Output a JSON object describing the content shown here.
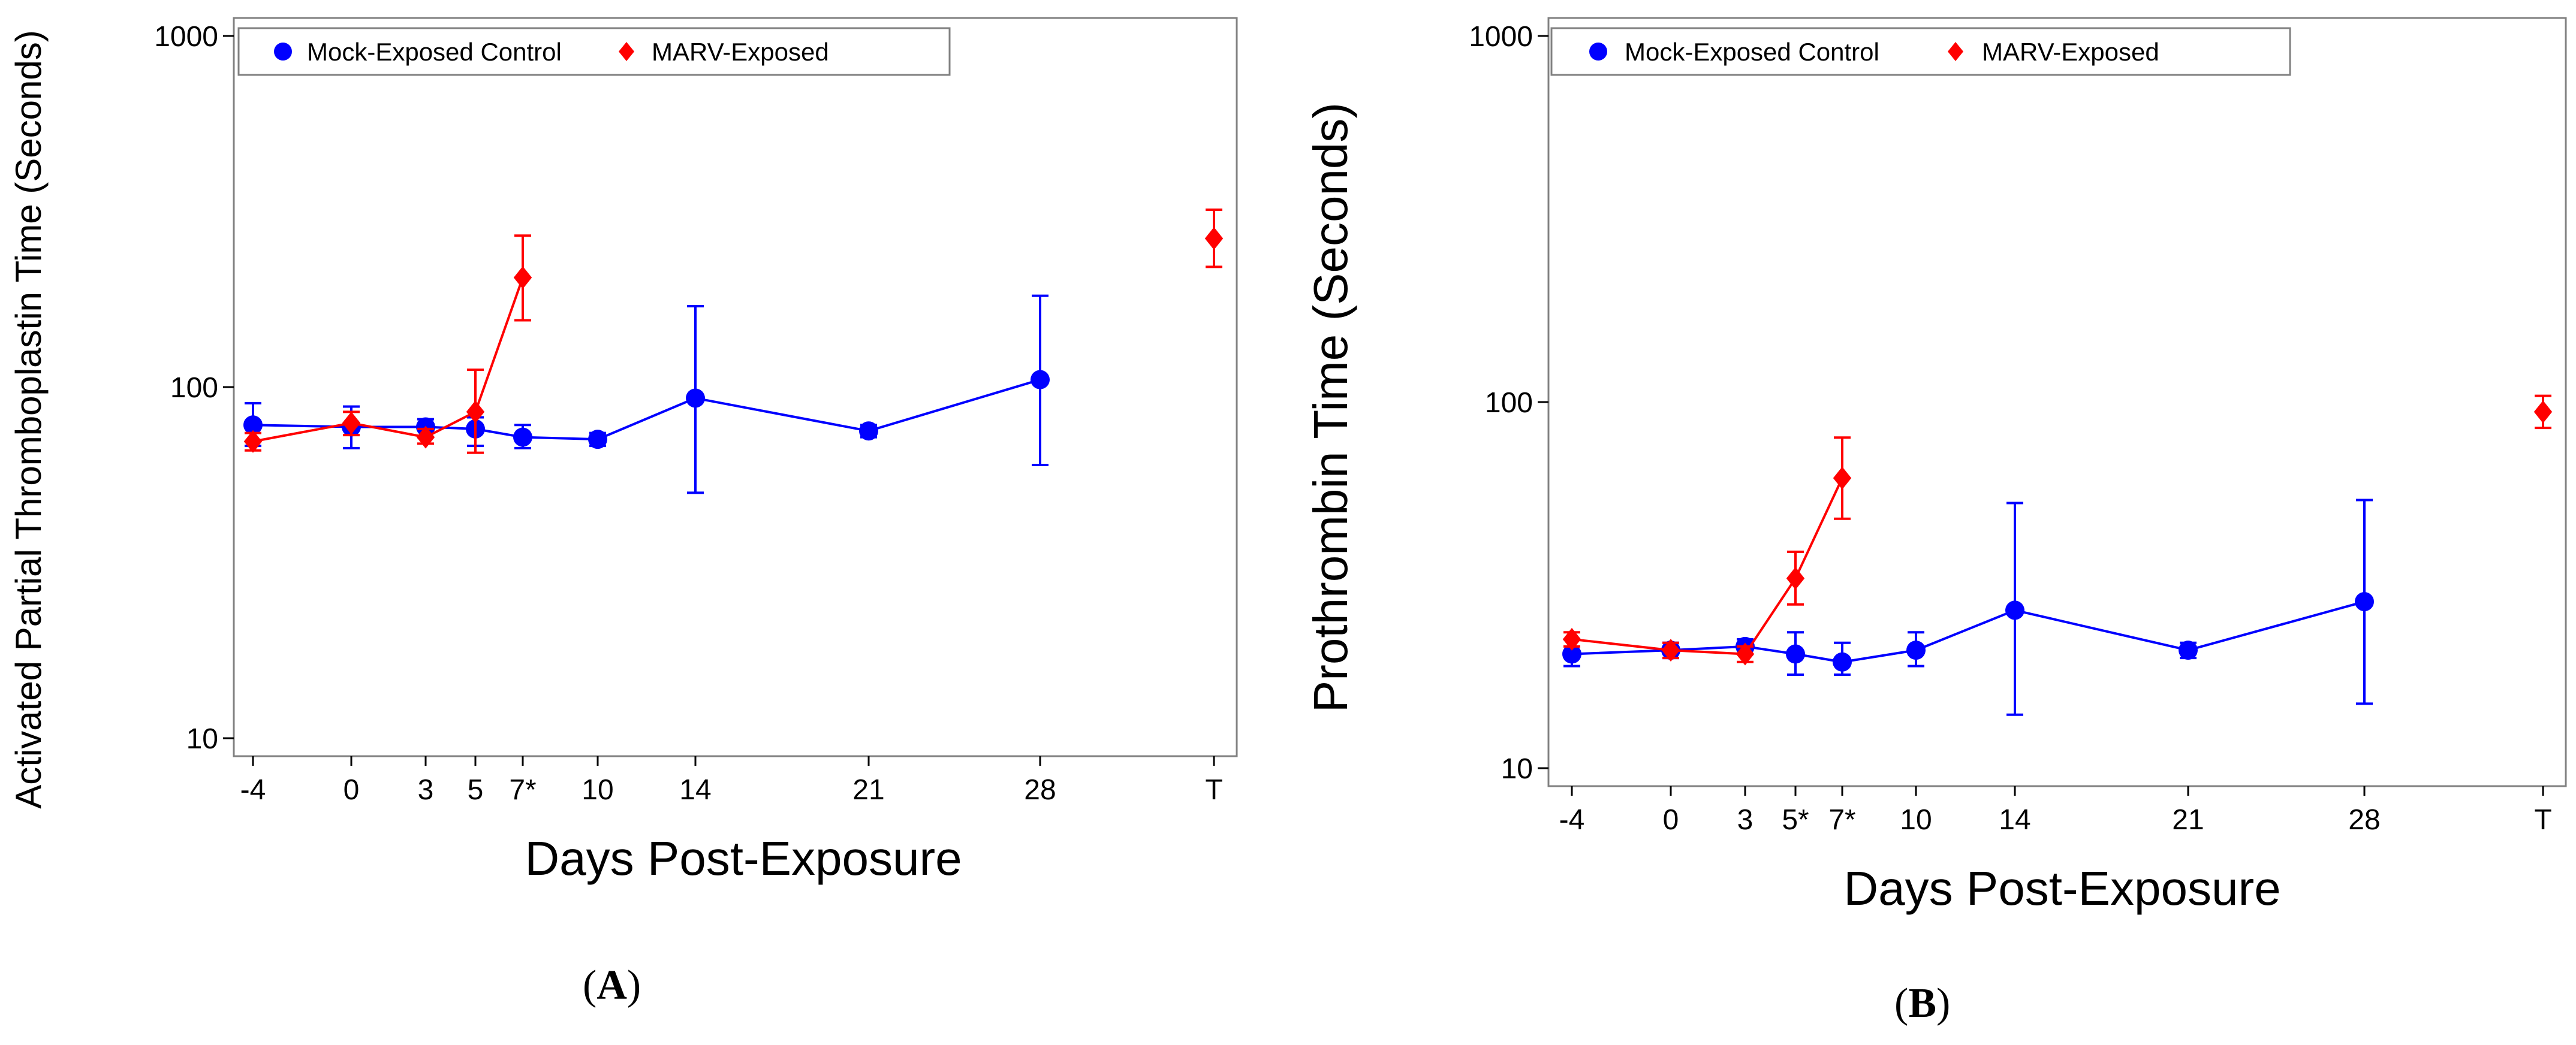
{
  "chart_data": [
    {
      "type": "line",
      "panel_label": "A",
      "xlabel": "Days Post-Exposure",
      "ylabel": "Activated Partial Thromboplastin Time (Seconds)",
      "yscale": "log",
      "ylim": [
        10,
        1000
      ],
      "yticks": [
        10,
        100,
        1000
      ],
      "xtick_labels": [
        "-4",
        "0",
        "3",
        "5",
        "7*",
        "10",
        "14",
        "21",
        "28",
        "T"
      ],
      "legend": [
        "Mock-Exposed Control",
        "MARV-Exposed"
      ],
      "legend_position": "top-left",
      "series": [
        {
          "name": "Mock-Exposed Control",
          "color": "#0000ff",
          "marker": "circle",
          "points": [
            {
              "x": "-4",
              "y": 78,
              "lo": 68,
              "hi": 90
            },
            {
              "x": "0",
              "y": 77,
              "lo": 67,
              "hi": 88
            },
            {
              "x": "3",
              "y": 77,
              "lo": 72,
              "hi": 81
            },
            {
              "x": "5",
              "y": 76,
              "lo": 68,
              "hi": 82
            },
            {
              "x": "7*",
              "y": 72,
              "lo": 67,
              "hi": 78
            },
            {
              "x": "10",
              "y": 71,
              "lo": 68,
              "hi": 74
            },
            {
              "x": "14",
              "y": 93,
              "lo": 50,
              "hi": 170
            },
            {
              "x": "21",
              "y": 75,
              "lo": 72,
              "hi": 78
            },
            {
              "x": "28",
              "y": 105,
              "lo": 60,
              "hi": 182
            }
          ]
        },
        {
          "name": "MARV-Exposed",
          "color": "#ff0000",
          "marker": "diamond",
          "points": [
            {
              "x": "-4",
              "y": 70,
              "lo": 66,
              "hi": 74
            },
            {
              "x": "0",
              "y": 79,
              "lo": 73,
              "hi": 85
            },
            {
              "x": "3",
              "y": 72,
              "lo": 69,
              "hi": 76
            },
            {
              "x": "5",
              "y": 85,
              "lo": 65,
              "hi": 112
            },
            {
              "x": "7*",
              "y": 205,
              "lo": 155,
              "hi": 270
            },
            {
              "x": "T",
              "y": 265,
              "lo": 220,
              "hi": 320,
              "connected": false
            }
          ]
        }
      ]
    },
    {
      "type": "line",
      "panel_label": "B",
      "xlabel": "Days Post-Exposure",
      "ylabel": "Prothrombin Time (Seconds)",
      "yscale": "log",
      "ylim": [
        10,
        1000
      ],
      "yticks": [
        10,
        100,
        1000
      ],
      "xtick_labels": [
        "-4",
        "0",
        "3",
        "5*",
        "7*",
        "10",
        "14",
        "21",
        "28",
        "T"
      ],
      "legend": [
        "Mock-Exposed Control",
        "MARV-Exposed"
      ],
      "legend_position": "top-left",
      "series": [
        {
          "name": "Mock-Exposed Control",
          "color": "#0000ff",
          "marker": "circle",
          "points": [
            {
              "x": "-4",
              "y": 20.5,
              "lo": 19,
              "hi": 22.5
            },
            {
              "x": "0",
              "y": 21,
              "lo": 20,
              "hi": 22
            },
            {
              "x": "3",
              "y": 21.5,
              "lo": 20.5,
              "hi": 22.5
            },
            {
              "x": "5*",
              "y": 20.5,
              "lo": 18,
              "hi": 23.5
            },
            {
              "x": "7*",
              "y": 19.5,
              "lo": 18,
              "hi": 22
            },
            {
              "x": "10",
              "y": 21,
              "lo": 19,
              "hi": 23.5
            },
            {
              "x": "14",
              "y": 27,
              "lo": 14,
              "hi": 53
            },
            {
              "x": "21",
              "y": 21,
              "lo": 20,
              "hi": 22
            },
            {
              "x": "28",
              "y": 28.5,
              "lo": 15,
              "hi": 54
            }
          ]
        },
        {
          "name": "MARV-Exposed",
          "color": "#ff0000",
          "marker": "diamond",
          "points": [
            {
              "x": "-4",
              "y": 22.5,
              "lo": 21.5,
              "hi": 23.5
            },
            {
              "x": "0",
              "y": 21,
              "lo": 20,
              "hi": 22
            },
            {
              "x": "3",
              "y": 20.5,
              "lo": 19.5,
              "hi": 21.5
            },
            {
              "x": "5*",
              "y": 33,
              "lo": 28,
              "hi": 39
            },
            {
              "x": "7*",
              "y": 62,
              "lo": 48,
              "hi": 80
            },
            {
              "x": "T",
              "y": 94,
              "lo": 85,
              "hi": 104,
              "connected": false
            }
          ]
        }
      ]
    }
  ]
}
